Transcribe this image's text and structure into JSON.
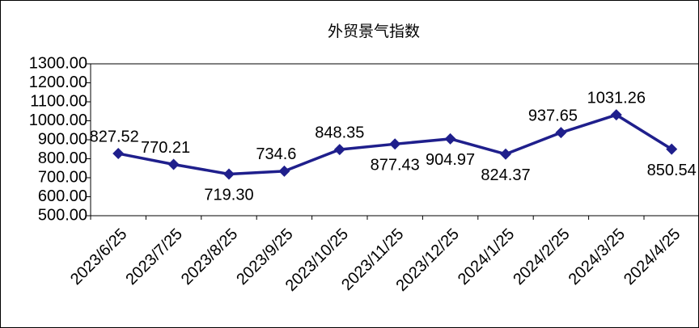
{
  "chart_data": {
    "type": "line",
    "title": "外贸景气指数",
    "categories": [
      "2023/6/25",
      "2023/7/25",
      "2023/8/25",
      "2023/9/25",
      "2023/10/25",
      "2023/11/25",
      "2023/12/25",
      "2024/1/25",
      "2024/2/25",
      "2024/3/25",
      "2024/4/25"
    ],
    "series": [
      {
        "color": "#1f1f8c",
        "values": [
          827.52,
          770.21,
          719.3,
          734.6,
          848.35,
          877.43,
          904.97,
          824.37,
          937.65,
          1031.26,
          850.54
        ],
        "value_labels": [
          "827.52",
          "770.21",
          "719.30",
          "734.6",
          "848.35",
          "877.43",
          "904.97",
          "824.37",
          "937.65",
          "1031.26",
          "850.54"
        ]
      }
    ],
    "ylim": [
      500,
      1300
    ],
    "yticks": [
      {
        "value": 500,
        "label": "500.00"
      },
      {
        "value": 600,
        "label": "600.00"
      },
      {
        "value": 700,
        "label": "700.00"
      },
      {
        "value": 800,
        "label": "800.00"
      },
      {
        "value": 900,
        "label": "900.00"
      },
      {
        "value": 1000,
        "label": "1000.00"
      },
      {
        "value": 1100,
        "label": "1100.00"
      },
      {
        "value": 1200,
        "label": "1200.00"
      },
      {
        "value": 1300,
        "label": "1300.00"
      }
    ]
  }
}
